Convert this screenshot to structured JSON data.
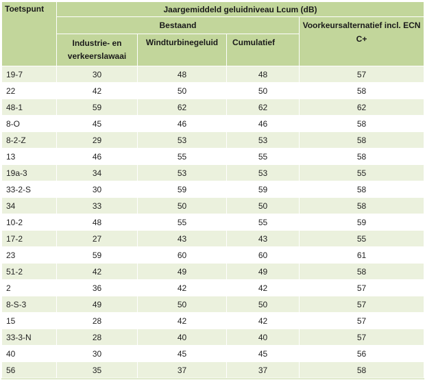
{
  "headers": {
    "toetspunt": "Toetspunt",
    "main": "Jaargemiddeld geluidniveau Lcum (dB)",
    "bestaand": "Bestaand",
    "voorkeur": "Voorkeursalternatief incl. ECN C+",
    "industrie": "Industrie- en verkeerslawaai",
    "windturbine": "Windturbinegeluid",
    "cumulatief": "Cumulatief"
  },
  "rows": [
    {
      "punt": "19-7",
      "ind": "30",
      "wind": "48",
      "cum": "48",
      "vk": "57"
    },
    {
      "punt": "22",
      "ind": "42",
      "wind": "50",
      "cum": "50",
      "vk": "58"
    },
    {
      "punt": "48-1",
      "ind": "59",
      "wind": "62",
      "cum": "62",
      "vk": "62"
    },
    {
      "punt": "8-O",
      "ind": "45",
      "wind": "46",
      "cum": "46",
      "vk": "58"
    },
    {
      "punt": "8-2-Z",
      "ind": "29",
      "wind": "53",
      "cum": "53",
      "vk": "58"
    },
    {
      "punt": "13",
      "ind": "46",
      "wind": "55",
      "cum": "55",
      "vk": "58"
    },
    {
      "punt": "19a-3",
      "ind": "34",
      "wind": "53",
      "cum": "53",
      "vk": "55"
    },
    {
      "punt": "33-2-S",
      "ind": "30",
      "wind": "59",
      "cum": "59",
      "vk": "58"
    },
    {
      "punt": "34",
      "ind": "33",
      "wind": "50",
      "cum": "50",
      "vk": "58"
    },
    {
      "punt": "10-2",
      "ind": "48",
      "wind": "55",
      "cum": "55",
      "vk": "59"
    },
    {
      "punt": "17-2",
      "ind": "27",
      "wind": "43",
      "cum": "43",
      "vk": "55"
    },
    {
      "punt": "23",
      "ind": "59",
      "wind": "60",
      "cum": "60",
      "vk": "61"
    },
    {
      "punt": "51-2",
      "ind": "42",
      "wind": "49",
      "cum": "49",
      "vk": "58"
    },
    {
      "punt": "2",
      "ind": "36",
      "wind": "42",
      "cum": "42",
      "vk": "57"
    },
    {
      "punt": "8-S-3",
      "ind": "49",
      "wind": "50",
      "cum": "50",
      "vk": "57"
    },
    {
      "punt": "15",
      "ind": "28",
      "wind": "42",
      "cum": "42",
      "vk": "57"
    },
    {
      "punt": "33-3-N",
      "ind": "28",
      "wind": "40",
      "cum": "40",
      "vk": "57"
    },
    {
      "punt": "40",
      "ind": "30",
      "wind": "45",
      "cum": "45",
      "vk": "56"
    },
    {
      "punt": "56",
      "ind": "35",
      "wind": "37",
      "cum": "37",
      "vk": "58"
    }
  ]
}
